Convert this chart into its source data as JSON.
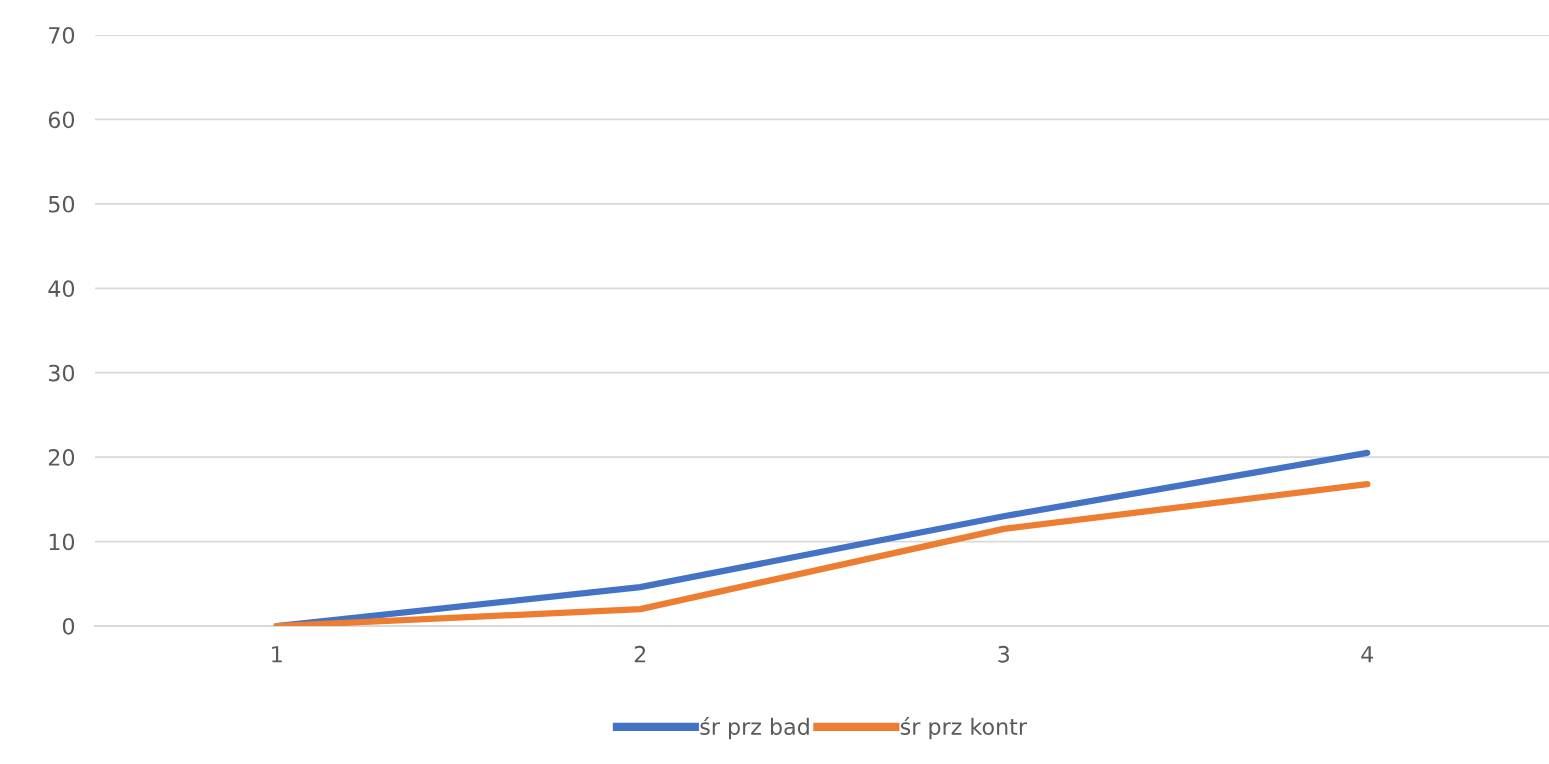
{
  "chart_data": {
    "type": "line",
    "categories": [
      "1",
      "2",
      "3",
      "4"
    ],
    "series": [
      {
        "name": "śr prz bad",
        "color": "#4472c4",
        "values": [
          0,
          4.6,
          13.0,
          20.5
        ]
      },
      {
        "name": "śr prz kontr",
        "color": "#ed7d31",
        "values": [
          0,
          2.0,
          11.5,
          16.8
        ]
      }
    ],
    "ylim": [
      0,
      70
    ],
    "yticks": [
      0,
      10,
      20,
      30,
      40,
      50,
      60,
      70
    ],
    "grid": "y",
    "legend": "bottom",
    "marker": "none",
    "line_style": "solid"
  }
}
